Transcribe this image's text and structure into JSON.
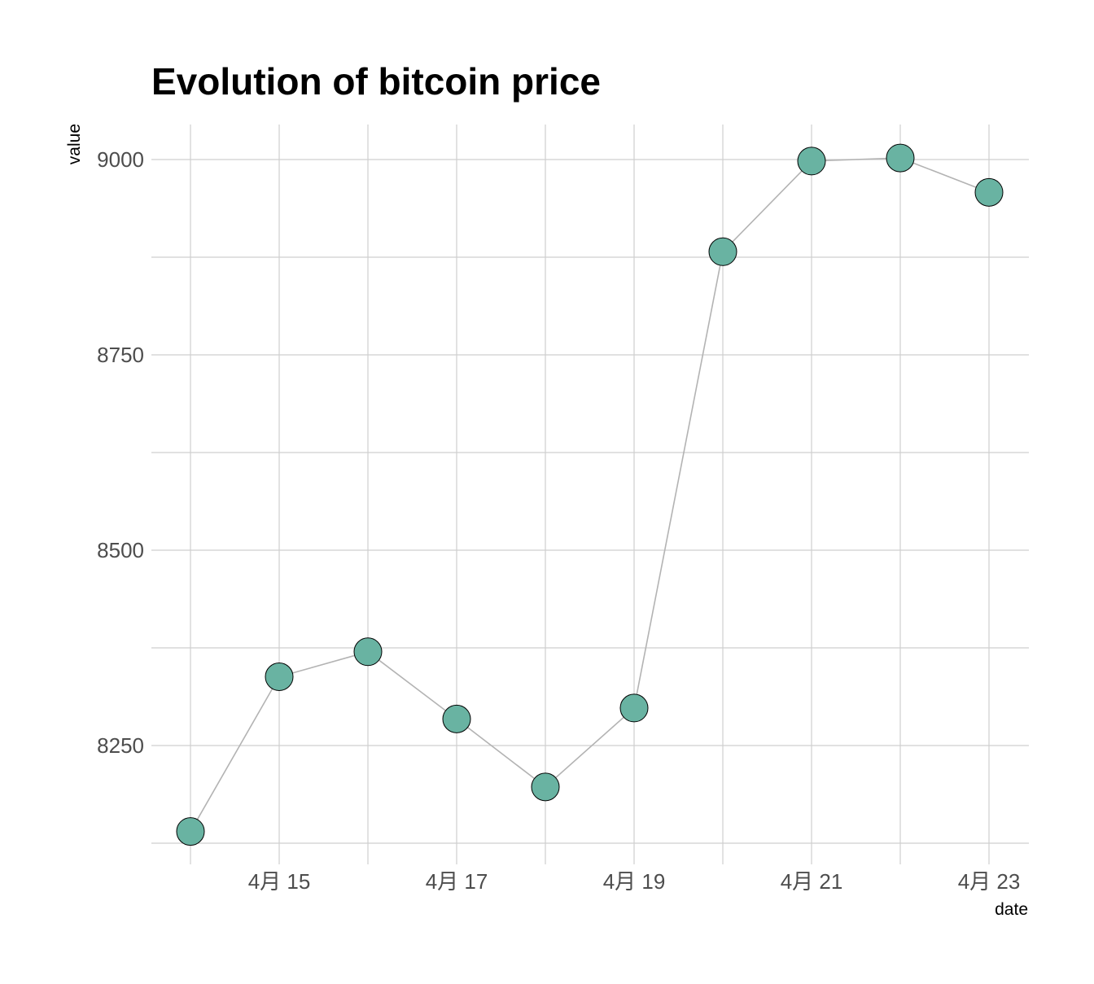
{
  "chart_data": {
    "type": "line",
    "title": "Evolution of bitcoin price",
    "xlabel": "date",
    "ylabel": "value",
    "x": [
      "2018-04-14",
      "2018-04-15",
      "2018-04-16",
      "2018-04-17",
      "2018-04-18",
      "2018-04-19",
      "2018-04-20",
      "2018-04-21",
      "2018-04-22",
      "2018-04-23"
    ],
    "series": [
      {
        "values": [
          8140,
          8338,
          8370,
          8284,
          8197,
          8298,
          8882,
          8998,
          9002,
          8958
        ]
      }
    ],
    "x_ticks": [
      "4月 15",
      "4月 17",
      "4月 19",
      "4月 21",
      "4月 23"
    ],
    "y_ticks": [
      "8250",
      "8500",
      "8750",
      "9000"
    ],
    "ylim": [
      8125,
      9045
    ],
    "grid": true,
    "legend": "none",
    "colors": {
      "line": "#b3b3b3",
      "point_fill": "#69b3a2",
      "point_stroke": "#000000",
      "grid": "#cfcfcf"
    }
  }
}
